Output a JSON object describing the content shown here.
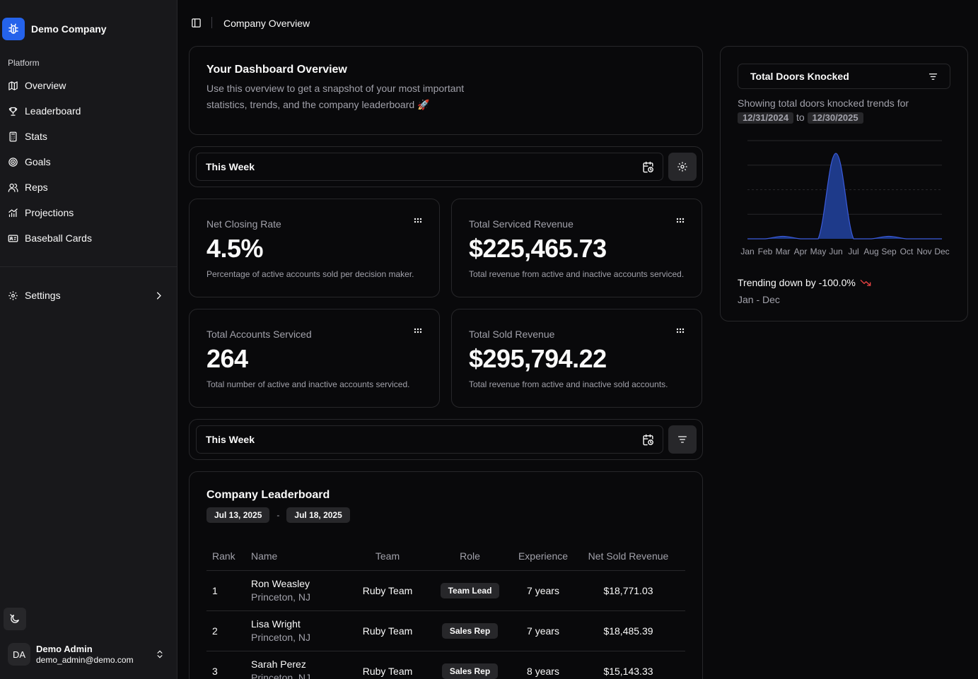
{
  "sidebar": {
    "company": "Demo Company",
    "group_label": "Platform",
    "items": [
      {
        "label": "Overview",
        "icon": "map-icon"
      },
      {
        "label": "Leaderboard",
        "icon": "trophy-icon"
      },
      {
        "label": "Stats",
        "icon": "calculator-icon"
      },
      {
        "label": "Goals",
        "icon": "target-icon"
      },
      {
        "label": "Reps",
        "icon": "users-icon"
      },
      {
        "label": "Projections",
        "icon": "chart-icon"
      },
      {
        "label": "Baseball Cards",
        "icon": "id-card-icon"
      }
    ],
    "settings_label": "Settings",
    "user": {
      "initials": "DA",
      "name": "Demo Admin",
      "email": "demo_admin@demo.com"
    }
  },
  "header": {
    "title": "Company Overview"
  },
  "overview": {
    "title": "Your Dashboard Overview",
    "text": "Use this overview to get a snapshot of your most important statistics, trends, and the company leaderboard 🚀"
  },
  "period_top": {
    "label": "This Week"
  },
  "period_bottom": {
    "label": "This Week"
  },
  "stats": [
    {
      "label": "Net Closing Rate",
      "value": "4.5%",
      "desc": "Percentage of active accounts sold per decision maker."
    },
    {
      "label": "Total Serviced Revenue",
      "value": "$225,465.73",
      "desc": "Total revenue from active and inactive accounts serviced."
    },
    {
      "label": "Total Accounts Serviced",
      "value": "264",
      "desc": "Total number of active and inactive accounts serviced."
    },
    {
      "label": "Total Sold Revenue",
      "value": "$295,794.22",
      "desc": "Total revenue from active and inactive sold accounts."
    }
  ],
  "leaderboard": {
    "title": "Company Leaderboard",
    "start": "Jul 13, 2025",
    "end": "Jul 18, 2025",
    "separator": "-",
    "columns": [
      "Rank",
      "Name",
      "Team",
      "Role",
      "Experience",
      "Net Sold Revenue"
    ],
    "rows": [
      {
        "rank": "1",
        "name": "Ron Weasley",
        "location": "Princeton, NJ",
        "team": "Ruby Team",
        "role": "Team Lead",
        "experience": "7 years",
        "revenue": "$18,771.03"
      },
      {
        "rank": "2",
        "name": "Lisa Wright",
        "location": "Princeton, NJ",
        "team": "Ruby Team",
        "role": "Sales Rep",
        "experience": "7 years",
        "revenue": "$18,485.39"
      },
      {
        "rank": "3",
        "name": "Sarah Perez",
        "location": "Princeton, NJ",
        "team": "Ruby Team",
        "role": "Sales Rep",
        "experience": "8 years",
        "revenue": "$15,143.33"
      }
    ]
  },
  "doors": {
    "select_label": "Total Doors Knocked",
    "showing": "Showing total doors knocked trends for",
    "from": "12/31/2024",
    "to_word": "to",
    "to": "12/30/2025",
    "trend": "Trending down by -100.0%",
    "range": "Jan - Dec"
  },
  "chart_data": {
    "type": "area",
    "categories": [
      "Jan",
      "Feb",
      "Mar",
      "Apr",
      "May",
      "Jun",
      "Jul",
      "Aug",
      "Sep",
      "Oct",
      "Nov",
      "Dec"
    ],
    "values": [
      0,
      0,
      1,
      0,
      0,
      34,
      0,
      0,
      1,
      0,
      0,
      0
    ],
    "grid": true,
    "color": "#1e3a8a",
    "stroke": "#3b5bdb"
  },
  "colors": {
    "accent": "#2563eb",
    "trend_down": "#ef4444"
  }
}
